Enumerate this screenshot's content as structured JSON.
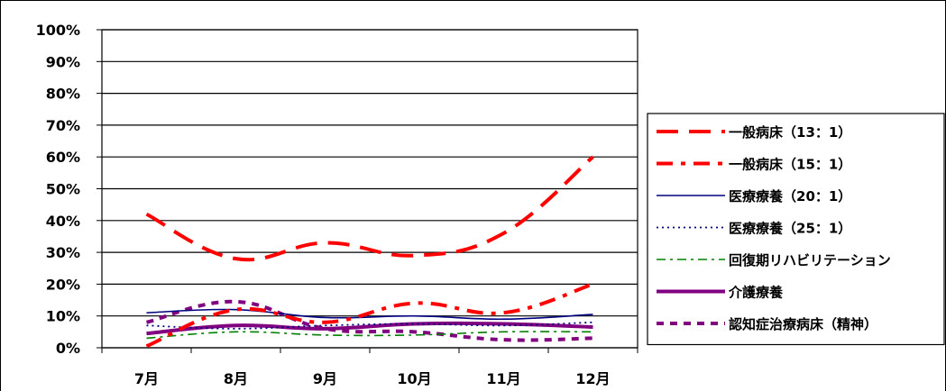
{
  "chart_data": {
    "type": "line",
    "title": "",
    "xlabel": "",
    "ylabel": "",
    "categories": [
      "7月",
      "8月",
      "9月",
      "10月",
      "11月",
      "12月"
    ],
    "ylim": [
      0,
      100
    ],
    "yticks": [
      "0%",
      "10%",
      "20%",
      "30%",
      "40%",
      "50%",
      "60%",
      "70%",
      "80%",
      "90%",
      "100%"
    ],
    "grid": true,
    "legend_position": "right",
    "series": [
      {
        "name": "一般病床（13：1）",
        "color": "#ff0000",
        "style": "long-dash",
        "values": [
          42,
          28,
          33,
          29,
          36,
          60
        ]
      },
      {
        "name": "一般病床（15：1）",
        "color": "#ff0000",
        "style": "dash-dot",
        "values": [
          0.5,
          12,
          8,
          14,
          11,
          20
        ]
      },
      {
        "name": "医療療養（20：1）",
        "color": "#000080",
        "style": "solid-thin",
        "values": [
          11,
          12,
          9.5,
          10,
          9,
          10.5
        ]
      },
      {
        "name": "医療療養（25：1）",
        "color": "#000080",
        "style": "dotted",
        "values": [
          7,
          6,
          7,
          7.5,
          7,
          8
        ]
      },
      {
        "name": "回復期リハビリテーション",
        "color": "#008000",
        "style": "dash-dot-green",
        "values": [
          3,
          5,
          4,
          4,
          5,
          5
        ]
      },
      {
        "name": "介護療養",
        "color": "#800080",
        "style": "solid-thick",
        "values": [
          4.5,
          7,
          6,
          7.5,
          7.5,
          6.5
        ]
      },
      {
        "name": "認知症治療病床（精神）",
        "color": "#800080",
        "style": "short-dash",
        "values": [
          8,
          14.5,
          6,
          5,
          2.5,
          3
        ]
      }
    ]
  }
}
